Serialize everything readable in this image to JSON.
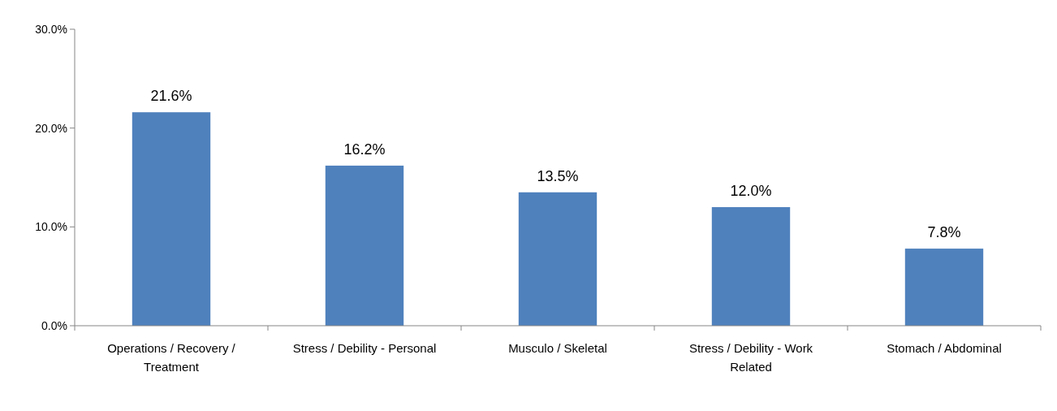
{
  "chart_data": {
    "type": "bar",
    "categories": [
      "Operations / Recovery / Treatment",
      "Stress / Debility - Personal",
      "Musculo / Skeletal",
      "Stress / Debility - Work Related",
      "Stomach / Abdominal"
    ],
    "values": [
      21.6,
      16.2,
      13.5,
      12.0,
      7.8
    ],
    "value_labels": [
      "21.6%",
      "16.2%",
      "13.5%",
      "12.0%",
      "7.8%"
    ],
    "color": "#4f81bd",
    "ylim": [
      0,
      30
    ],
    "yticks": [
      {
        "value": 0,
        "label": "0.0%"
      },
      {
        "value": 10,
        "label": "10.0%"
      },
      {
        "value": 20,
        "label": "20.0%"
      },
      {
        "value": 30,
        "label": "30.0%"
      }
    ],
    "grid": false
  }
}
